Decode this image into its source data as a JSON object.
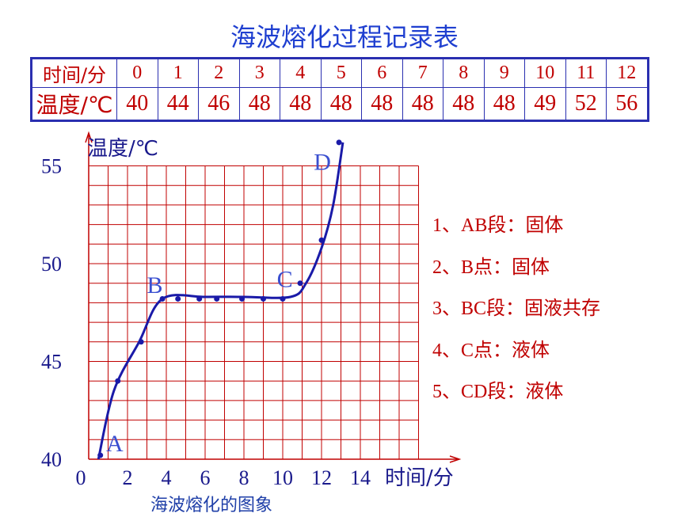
{
  "title": "海波熔化过程记录表",
  "table": {
    "row_time_label": "时间/分",
    "row_temp_label": "温度/℃",
    "times": [
      "0",
      "1",
      "2",
      "3",
      "4",
      "5",
      "6",
      "7",
      "8",
      "9",
      "10",
      "11",
      "12"
    ],
    "temps": [
      "40",
      "44",
      "46",
      "48",
      "48",
      "48",
      "48",
      "48",
      "48",
      "48",
      "49",
      "52",
      "56"
    ]
  },
  "chart_data": {
    "type": "line",
    "title": "",
    "caption": "海波熔化的图象",
    "xlabel": "时间/分",
    "ylabel": "温度/℃",
    "xlim": [
      0,
      17
    ],
    "ylim": [
      40,
      55
    ],
    "x_ticks": [
      0,
      2,
      4,
      6,
      8,
      10,
      12,
      14
    ],
    "y_ticks": [
      40,
      45,
      50,
      55
    ],
    "grid": true,
    "points": [
      {
        "x": 0.6,
        "y": 40.2
      },
      {
        "x": 1.5,
        "y": 44.0
      },
      {
        "x": 2.7,
        "y": 46.0
      },
      {
        "x": 3.8,
        "y": 48.2
      },
      {
        "x": 4.6,
        "y": 48.2
      },
      {
        "x": 5.7,
        "y": 48.2
      },
      {
        "x": 6.6,
        "y": 48.2
      },
      {
        "x": 7.9,
        "y": 48.2
      },
      {
        "x": 9.0,
        "y": 48.2
      },
      {
        "x": 10.0,
        "y": 48.2
      },
      {
        "x": 10.9,
        "y": 49.0
      },
      {
        "x": 12.0,
        "y": 51.2
      },
      {
        "x": 12.9,
        "y": 56.2
      }
    ],
    "curve": [
      {
        "x": 0.5,
        "y": 40.0
      },
      {
        "x": 1.3,
        "y": 43.5
      },
      {
        "x": 2.6,
        "y": 46.0
      },
      {
        "x": 3.8,
        "y": 48.2
      },
      {
        "x": 6.0,
        "y": 48.3
      },
      {
        "x": 8.0,
        "y": 48.3
      },
      {
        "x": 10.4,
        "y": 48.3
      },
      {
        "x": 11.2,
        "y": 49.0
      },
      {
        "x": 12.0,
        "y": 50.8
      },
      {
        "x": 12.6,
        "y": 53.0
      },
      {
        "x": 13.1,
        "y": 56.2
      }
    ],
    "annotations": [
      {
        "label": "A",
        "x": 0.9,
        "y": 40.4
      },
      {
        "label": "B",
        "x": 3.0,
        "y": 48.5
      },
      {
        "label": "C",
        "x": 9.7,
        "y": 48.8
      },
      {
        "label": "D",
        "x": 11.6,
        "y": 54.8
      }
    ],
    "colors": {
      "grid": "#c00000",
      "curve": "#1a1aa8",
      "points": "#1a1aa8",
      "labels": "#3a4fd0"
    }
  },
  "notes": [
    {
      "num": "1、AB",
      "text": "段：固体"
    },
    {
      "num": "2、B",
      "text": "点：固体"
    },
    {
      "num": "3、BC",
      "text": "段：固液共存"
    },
    {
      "num": "4、C",
      "text": "点：液体"
    },
    {
      "num": "5、CD",
      "text": "段：液体"
    }
  ]
}
